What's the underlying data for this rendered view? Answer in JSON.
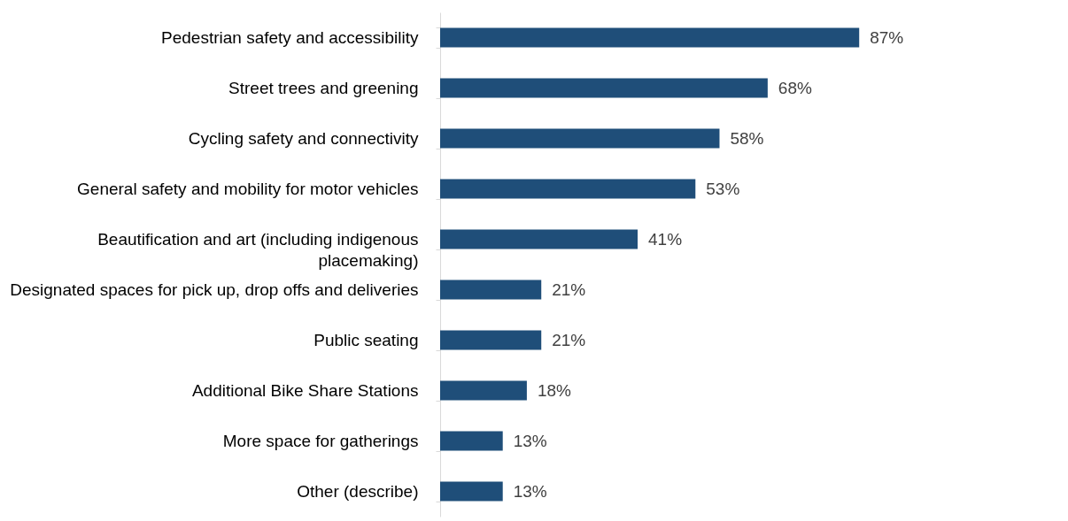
{
  "chart_data": {
    "type": "bar",
    "orientation": "horizontal",
    "categories": [
      "Pedestrian safety and accessibility",
      "Street trees and greening",
      "Cycling safety and connectivity",
      "General safety and mobility for motor vehicles",
      "Beautification and art (including indigenous placemaking)",
      "Designated spaces for pick up, drop offs and deliveries",
      "Public seating",
      "Additional Bike Share Stations",
      "More space for gatherings",
      "Other (describe)"
    ],
    "values": [
      87,
      68,
      58,
      53,
      41,
      21,
      21,
      18,
      13,
      13
    ],
    "value_labels": [
      "87%",
      "68%",
      "58%",
      "53%",
      "41%",
      "21%",
      "21%",
      "18%",
      "13%",
      "13%"
    ],
    "color": "#1f4e79",
    "grid": false
  }
}
